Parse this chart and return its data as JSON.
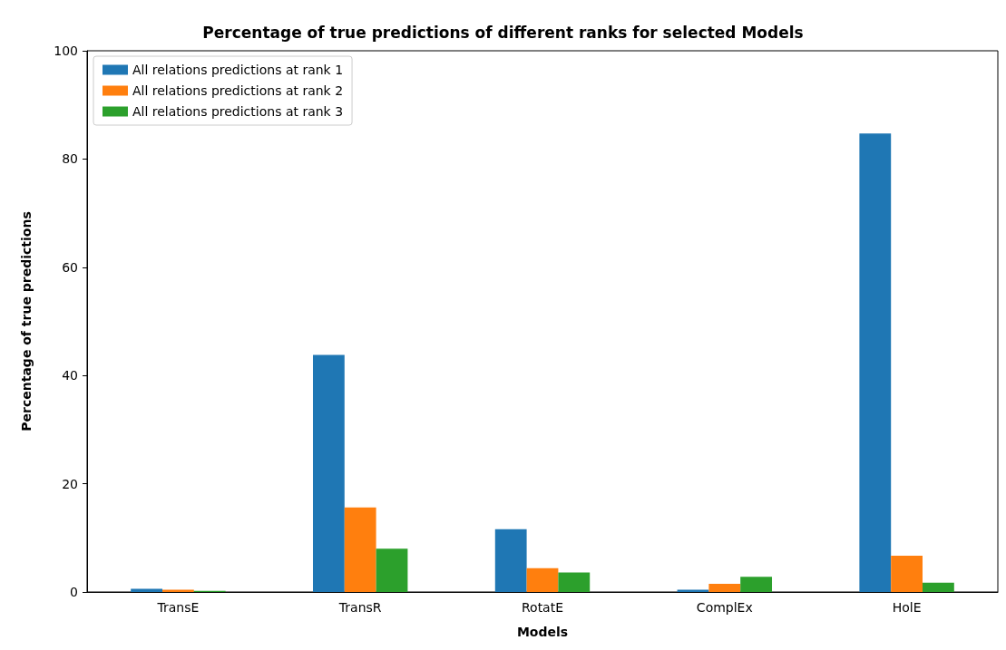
{
  "chart_data": {
    "type": "bar",
    "title": "Percentage of true predictions of different ranks for selected Models",
    "xlabel": "Models",
    "ylabel": "Percentage of true predictions",
    "categories": [
      "TransE",
      "TransR",
      "RotatE",
      "ComplEx",
      "HolE"
    ],
    "series": [
      {
        "name": "All relations predictions at rank 1",
        "color": "#1f77b4",
        "values": [
          0.6,
          43.8,
          11.6,
          0.4,
          84.7
        ]
      },
      {
        "name": "All relations predictions at rank 2",
        "color": "#ff7f0e",
        "values": [
          0.4,
          15.6,
          4.4,
          1.5,
          6.7
        ]
      },
      {
        "name": "All relations predictions at rank 3",
        "color": "#2ca02c",
        "values": [
          0.2,
          8.0,
          3.6,
          2.8,
          1.7
        ]
      }
    ],
    "ylim": [
      0,
      100
    ],
    "yticks": [
      0,
      20,
      40,
      60,
      80,
      100
    ],
    "grid": false,
    "legend": "top left"
  }
}
